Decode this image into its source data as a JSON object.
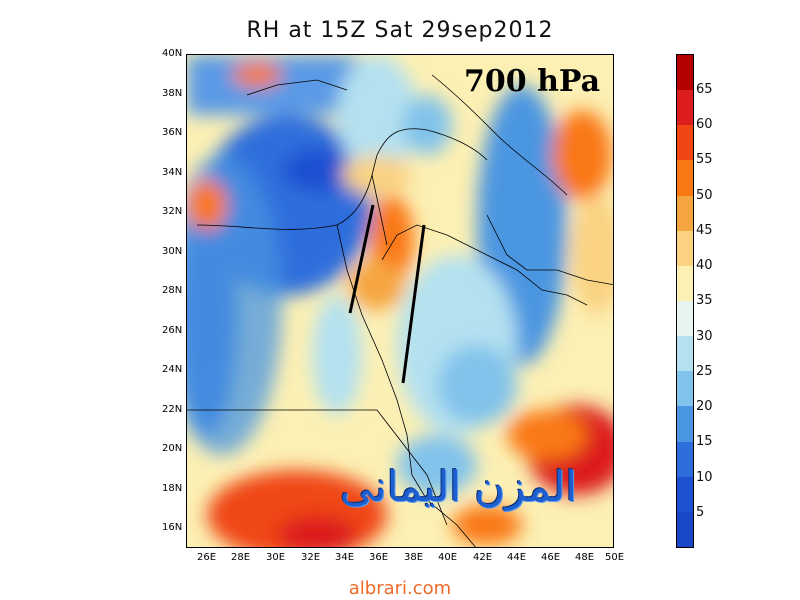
{
  "title": "RH at 15Z Sat 29sep2012",
  "level_label": "700 hPa",
  "watermark_arabic": "المزن اليمانى",
  "site_credit": "albrari.com",
  "lat_labels": [
    "40N",
    "38N",
    "36N",
    "34N",
    "32N",
    "30N",
    "28N",
    "26N",
    "24N",
    "22N",
    "20N",
    "18N",
    "16N"
  ],
  "lon_labels": [
    "26E",
    "28E",
    "30E",
    "32E",
    "34E",
    "36E",
    "38E",
    "40E",
    "42E",
    "44E",
    "46E",
    "48E",
    "50E"
  ],
  "colorbar": {
    "labels": [
      "65",
      "60",
      "55",
      "50",
      "45",
      "40",
      "35",
      "30",
      "25",
      "20",
      "15",
      "10",
      "5"
    ],
    "colors": [
      "#b40000",
      "#dc1e1e",
      "#f04614",
      "#fa7814",
      "#f5a540",
      "#fad282",
      "#fcf0b4",
      "#e6f5f0",
      "#b4e1f0",
      "#82c3eb",
      "#4b96e1",
      "#2d6edc",
      "#1e50d2",
      "#1a46c8"
    ]
  },
  "annotations": {
    "vertical_lines": 2
  }
}
